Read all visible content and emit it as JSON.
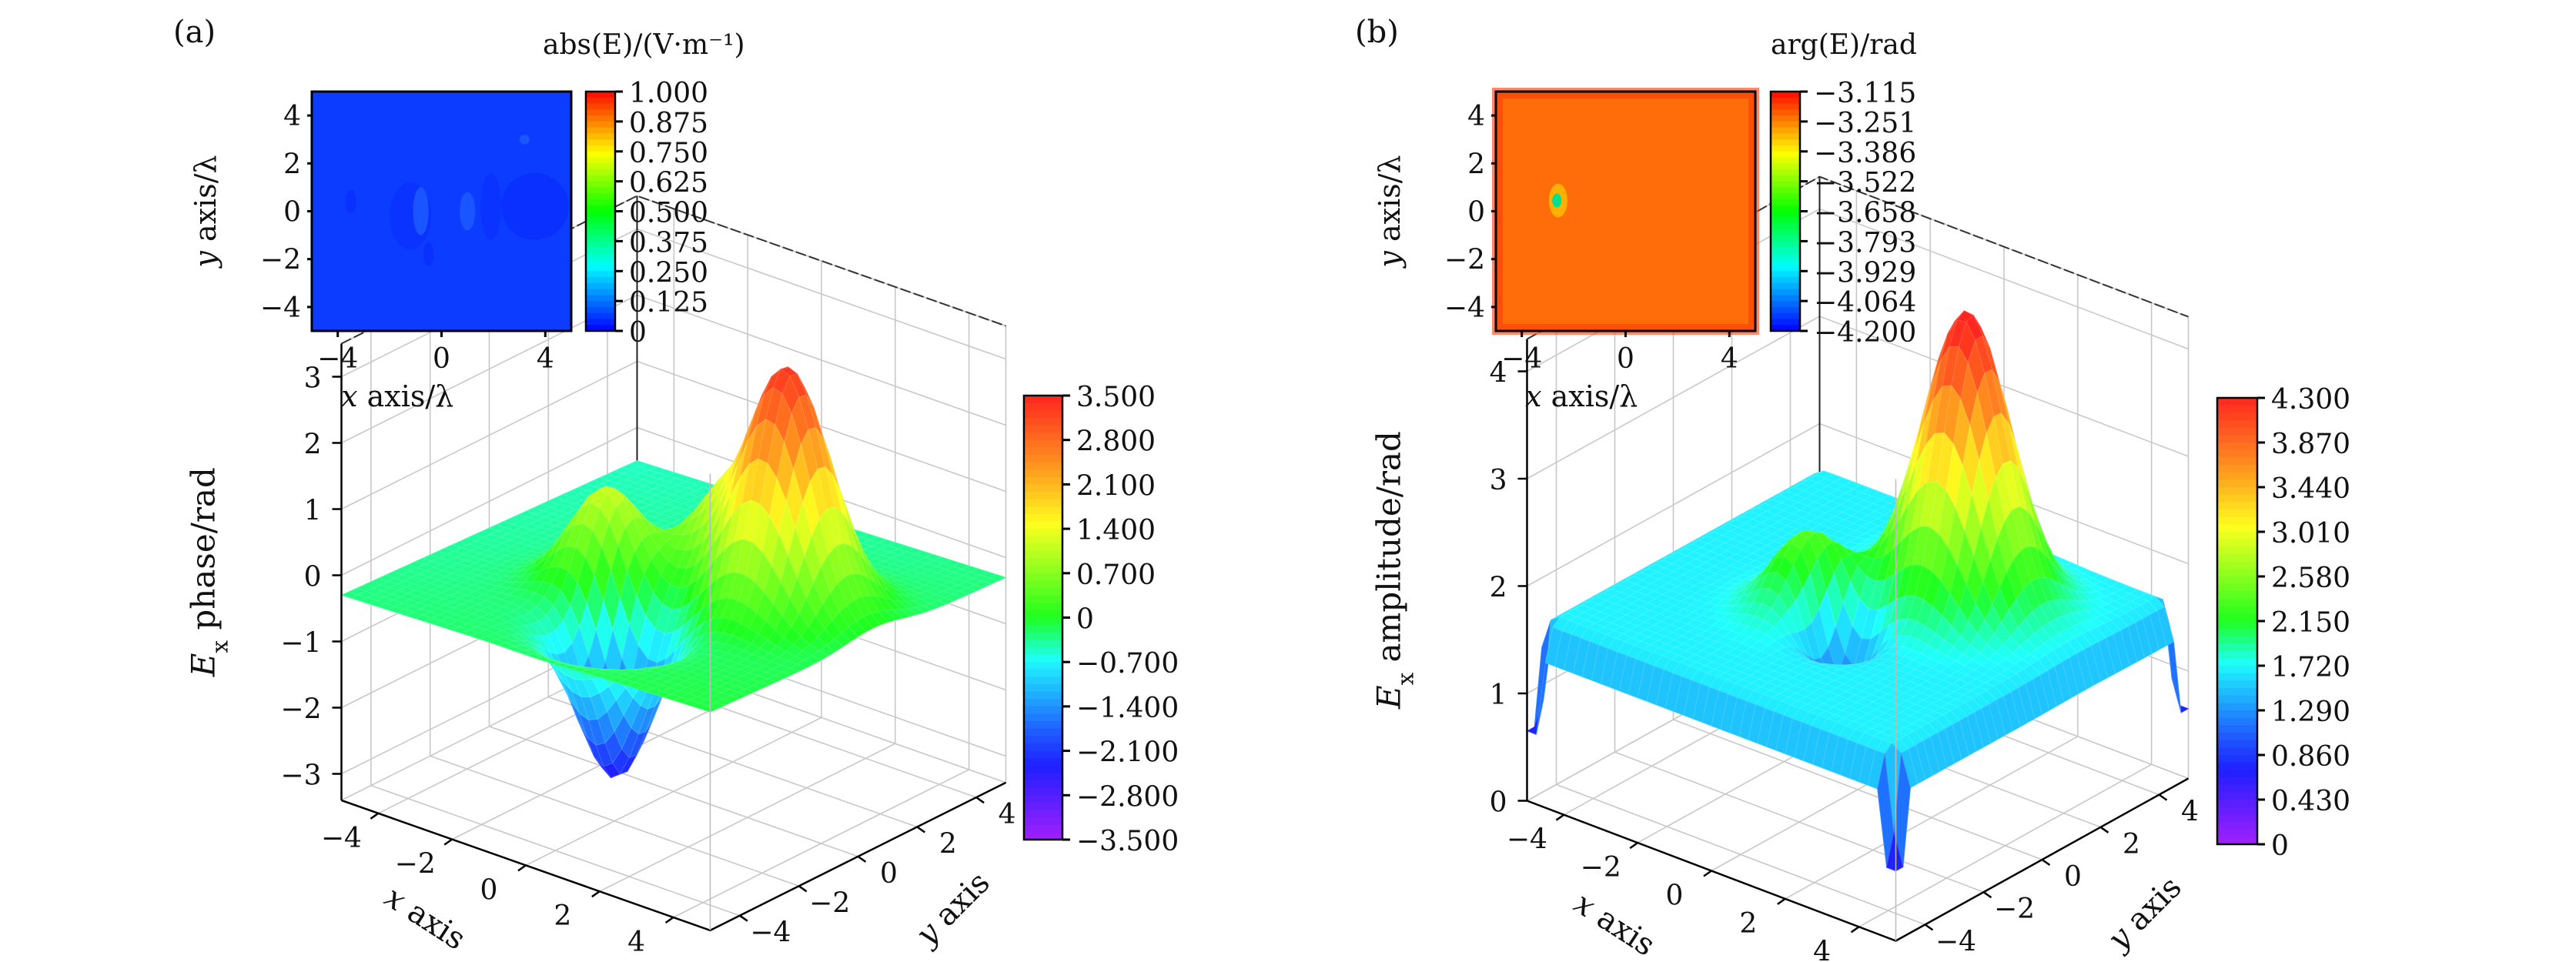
{
  "chart_data": [
    {
      "panel_label": "(a)",
      "type": "surface",
      "zlabel": {
        "symbol": "E",
        "sub": "x",
        "rest": " phase/rad"
      },
      "xlabel": {
        "symbol": "x",
        "rest": " axis"
      },
      "ylabel": {
        "symbol": "y",
        "rest": " axis"
      },
      "xticks": [
        -4,
        -2,
        0,
        2,
        4
      ],
      "yticks": [
        -4,
        -2,
        0,
        2,
        4
      ],
      "zticks": [
        -3,
        -2,
        -1,
        0,
        1,
        2,
        3
      ],
      "xlim": [
        -5,
        5
      ],
      "ylim": [
        -5,
        5
      ],
      "zlim": [
        -3.4,
        3.5
      ],
      "colorbar": {
        "range": [
          -3.5,
          3.5
        ],
        "ticks": [
          "3.500",
          "2.800",
          "2.100",
          "1.400",
          "0.700",
          "0",
          "−0.700",
          "−1.400",
          "−2.100",
          "−2.800",
          "−3.500"
        ]
      },
      "surface": {
        "baseline": -0.3,
        "features": [
          {
            "x": 2.6,
            "y": 0.6,
            "amplitude": 3.6,
            "sigma": 0.95
          },
          {
            "x": -1.1,
            "y": -0.9,
            "amplitude": 1.5,
            "sigma": 0.8
          },
          {
            "x": 0.6,
            "y": 1.0,
            "amplitude": 1.2,
            "sigma": 0.8
          },
          {
            "x": 0.5,
            "y": -2.6,
            "amplitude": -2.3,
            "sigma": 0.8
          }
        ]
      },
      "inset": {
        "title": "abs(E)/(V·m⁻¹)",
        "type": "heatmap",
        "xlabel": {
          "symbol": "x",
          "rest": " axis/λ"
        },
        "ylabel": {
          "symbol": "y",
          "rest": " axis/λ"
        },
        "xticks": [
          "−4",
          "0",
          "4"
        ],
        "yticks": [
          "4",
          "2",
          "0",
          "−2",
          "−4"
        ],
        "value_approx": 0.1,
        "fill": "#0b3cff",
        "colorbar": {
          "ticks": [
            "1.000",
            "0.875",
            "0.750",
            "0.625",
            "0.500",
            "0.375",
            "0.250",
            "0.125",
            "0"
          ]
        }
      }
    },
    {
      "panel_label": "(b)",
      "type": "surface",
      "zlabel": {
        "symbol": "E",
        "sub": "x",
        "rest": " amplitude/rad"
      },
      "xlabel": {
        "symbol": "x",
        "rest": " axis"
      },
      "ylabel": {
        "symbol": "y",
        "rest": " axis"
      },
      "xticks": [
        -4,
        -2,
        0,
        2,
        4
      ],
      "yticks": [
        -4,
        -2,
        0,
        2,
        4
      ],
      "zticks": [
        0,
        1,
        2,
        3,
        4
      ],
      "xlim": [
        -5,
        5
      ],
      "ylim": [
        -5,
        5
      ],
      "zlim": [
        0,
        4.3
      ],
      "colorbar": {
        "range": [
          0,
          4.3
        ],
        "ticks": [
          "4.300",
          "3.870",
          "3.440",
          "3.010",
          "2.580",
          "2.150",
          "1.720",
          "1.290",
          "0.860",
          "0.430",
          "0"
        ]
      },
      "surface": {
        "baseline": 1.7,
        "edge_value": 1.35,
        "features": [
          {
            "x": 1.75,
            "y": 1.6,
            "amplitude": 2.55,
            "sigma": 0.95
          },
          {
            "x": -0.45,
            "y": -0.8,
            "amplitude": 1.1,
            "sigma": 0.8
          },
          {
            "x": 0.45,
            "y": 2.4,
            "amplitude": 0.85,
            "sigma": 0.8
          },
          {
            "x": 0.2,
            "y": -1.05,
            "amplitude": -1.2,
            "sigma": 0.65
          }
        ]
      },
      "inset": {
        "title": "arg(E)/rad",
        "type": "heatmap",
        "xlabel": {
          "symbol": "x",
          "rest": " axis/λ"
        },
        "ylabel": {
          "symbol": "y",
          "rest": " axis/λ"
        },
        "xticks": [
          "−4",
          "0",
          "4"
        ],
        "yticks": [
          "4",
          "2",
          "0",
          "−2",
          "−4"
        ],
        "value_approx": -3.2,
        "fill": "#ff6c0a",
        "colorbar": {
          "ticks": [
            "−3.115",
            "−3.251",
            "−3.386",
            "−3.522",
            "−3.658",
            "−3.793",
            "−3.929",
            "−4.064",
            "−4.200"
          ]
        }
      }
    }
  ]
}
